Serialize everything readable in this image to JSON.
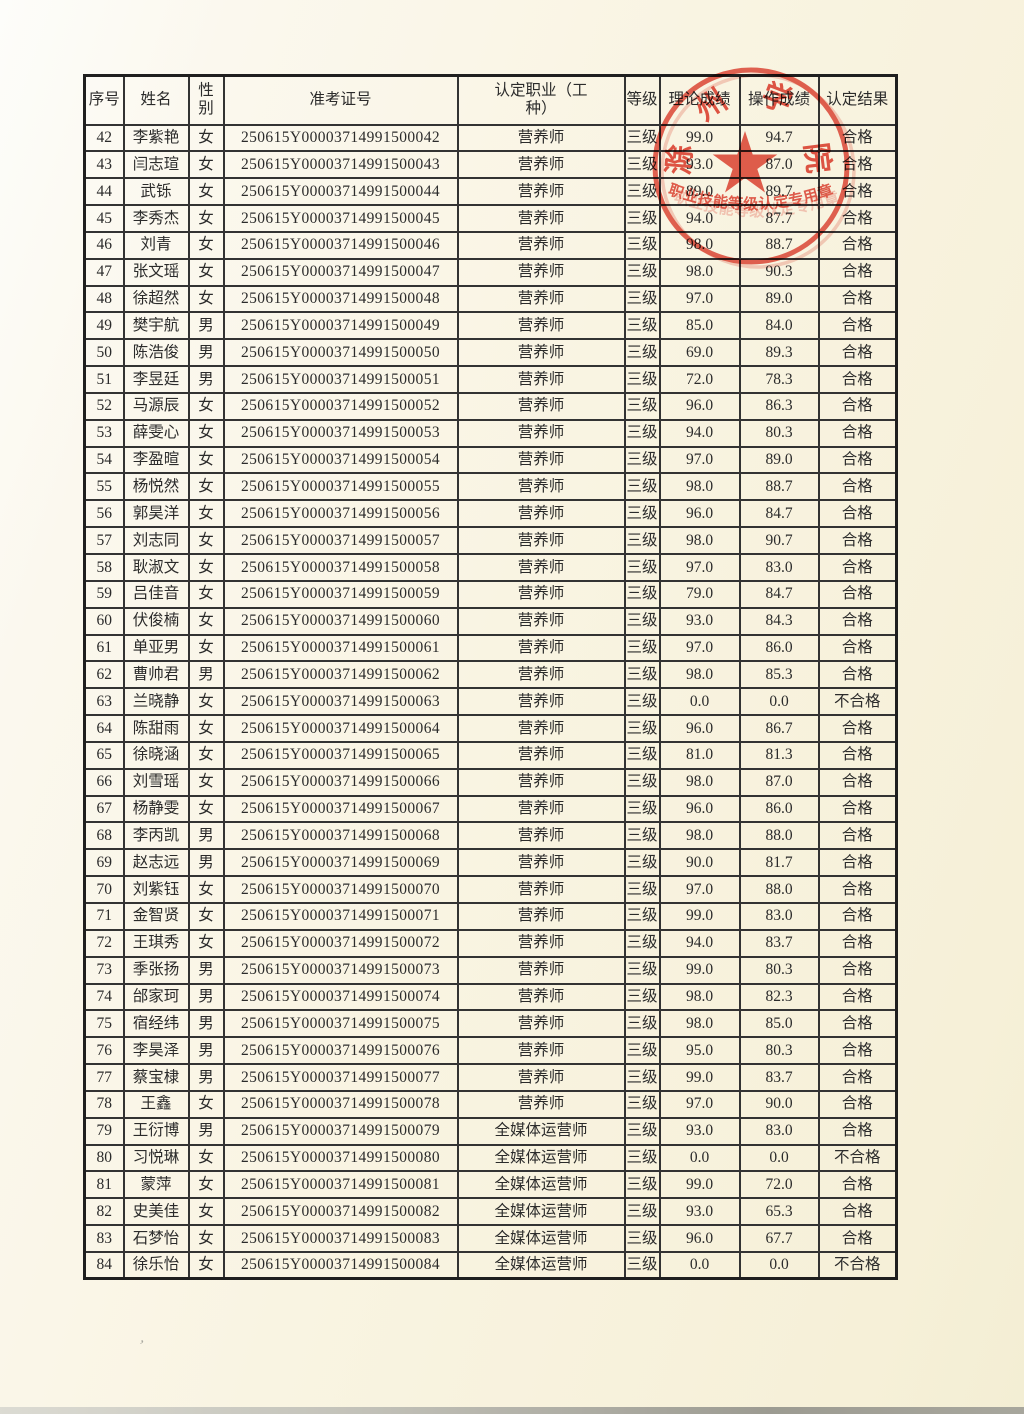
{
  "document": {
    "type": "scanned-certification-result-list",
    "page_background": "#f9f4e2",
    "ink_color": "#2b2b2b"
  },
  "table": {
    "headers": {
      "serial": "序号",
      "name": "姓名",
      "gender_l1": "性",
      "gender_l2": "别",
      "exam_id": "准考证号",
      "occupation_l1": "认定职业（工",
      "occupation_l2": "种）",
      "level": "等级",
      "theory_score": "理论成绩",
      "practical_score": "操作成绩",
      "result": "认定结果"
    },
    "rows": [
      [
        "42",
        "李紫艳",
        "女",
        "250615Y00003714991500042",
        "营养师",
        "三级",
        "99.0",
        "94.7",
        "合格"
      ],
      [
        "43",
        "闫志瑄",
        "女",
        "250615Y00003714991500043",
        "营养师",
        "三级",
        "93.0",
        "87.0",
        "合格"
      ],
      [
        "44",
        "武铄",
        "女",
        "250615Y00003714991500044",
        "营养师",
        "三级",
        "89.0",
        "89.7",
        "合格"
      ],
      [
        "45",
        "李秀杰",
        "女",
        "250615Y00003714991500045",
        "营养师",
        "三级",
        "94.0",
        "87.7",
        "合格"
      ],
      [
        "46",
        "刘青",
        "女",
        "250615Y00003714991500046",
        "营养师",
        "三级",
        "98.0",
        "88.7",
        "合格"
      ],
      [
        "47",
        "张文瑶",
        "女",
        "250615Y00003714991500047",
        "营养师",
        "三级",
        "98.0",
        "90.3",
        "合格"
      ],
      [
        "48",
        "徐超然",
        "女",
        "250615Y00003714991500048",
        "营养师",
        "三级",
        "97.0",
        "89.0",
        "合格"
      ],
      [
        "49",
        "樊宇航",
        "男",
        "250615Y00003714991500049",
        "营养师",
        "三级",
        "85.0",
        "84.0",
        "合格"
      ],
      [
        "50",
        "陈浩俊",
        "男",
        "250615Y00003714991500050",
        "营养师",
        "三级",
        "69.0",
        "89.3",
        "合格"
      ],
      [
        "51",
        "李昱廷",
        "男",
        "250615Y00003714991500051",
        "营养师",
        "三级",
        "72.0",
        "78.3",
        "合格"
      ],
      [
        "52",
        "马源辰",
        "女",
        "250615Y00003714991500052",
        "营养师",
        "三级",
        "96.0",
        "86.3",
        "合格"
      ],
      [
        "53",
        "薛雯心",
        "女",
        "250615Y00003714991500053",
        "营养师",
        "三级",
        "94.0",
        "80.3",
        "合格"
      ],
      [
        "54",
        "李盈暄",
        "女",
        "250615Y00003714991500054",
        "营养师",
        "三级",
        "97.0",
        "89.0",
        "合格"
      ],
      [
        "55",
        "杨悦然",
        "女",
        "250615Y00003714991500055",
        "营养师",
        "三级",
        "98.0",
        "88.7",
        "合格"
      ],
      [
        "56",
        "郭昊洋",
        "女",
        "250615Y00003714991500056",
        "营养师",
        "三级",
        "96.0",
        "84.7",
        "合格"
      ],
      [
        "57",
        "刘志同",
        "女",
        "250615Y00003714991500057",
        "营养师",
        "三级",
        "98.0",
        "90.7",
        "合格"
      ],
      [
        "58",
        "耿淑文",
        "女",
        "250615Y00003714991500058",
        "营养师",
        "三级",
        "97.0",
        "83.0",
        "合格"
      ],
      [
        "59",
        "吕佳音",
        "女",
        "250615Y00003714991500059",
        "营养师",
        "三级",
        "79.0",
        "84.7",
        "合格"
      ],
      [
        "60",
        "伏俊楠",
        "女",
        "250615Y00003714991500060",
        "营养师",
        "三级",
        "93.0",
        "84.3",
        "合格"
      ],
      [
        "61",
        "单亚男",
        "女",
        "250615Y00003714991500061",
        "营养师",
        "三级",
        "97.0",
        "86.0",
        "合格"
      ],
      [
        "62",
        "曹帅君",
        "男",
        "250615Y00003714991500062",
        "营养师",
        "三级",
        "98.0",
        "85.3",
        "合格"
      ],
      [
        "63",
        "兰晓静",
        "女",
        "250615Y00003714991500063",
        "营养师",
        "三级",
        "0.0",
        "0.0",
        "不合格"
      ],
      [
        "64",
        "陈甜雨",
        "女",
        "250615Y00003714991500064",
        "营养师",
        "三级",
        "96.0",
        "86.7",
        "合格"
      ],
      [
        "65",
        "徐晓涵",
        "女",
        "250615Y00003714991500065",
        "营养师",
        "三级",
        "81.0",
        "81.3",
        "合格"
      ],
      [
        "66",
        "刘雪瑶",
        "女",
        "250615Y00003714991500066",
        "营养师",
        "三级",
        "98.0",
        "87.0",
        "合格"
      ],
      [
        "67",
        "杨静雯",
        "女",
        "250615Y00003714991500067",
        "营养师",
        "三级",
        "96.0",
        "86.0",
        "合格"
      ],
      [
        "68",
        "李丙凯",
        "男",
        "250615Y00003714991500068",
        "营养师",
        "三级",
        "98.0",
        "88.0",
        "合格"
      ],
      [
        "69",
        "赵志远",
        "男",
        "250615Y00003714991500069",
        "营养师",
        "三级",
        "90.0",
        "81.7",
        "合格"
      ],
      [
        "70",
        "刘紫钰",
        "女",
        "250615Y00003714991500070",
        "营养师",
        "三级",
        "97.0",
        "88.0",
        "合格"
      ],
      [
        "71",
        "金智贤",
        "女",
        "250615Y00003714991500071",
        "营养师",
        "三级",
        "99.0",
        "83.0",
        "合格"
      ],
      [
        "72",
        "王琪秀",
        "女",
        "250615Y00003714991500072",
        "营养师",
        "三级",
        "94.0",
        "83.7",
        "合格"
      ],
      [
        "73",
        "季张扬",
        "男",
        "250615Y00003714991500073",
        "营养师",
        "三级",
        "99.0",
        "80.3",
        "合格"
      ],
      [
        "74",
        "邰家珂",
        "男",
        "250615Y00003714991500074",
        "营养师",
        "三级",
        "98.0",
        "82.3",
        "合格"
      ],
      [
        "75",
        "宿经纬",
        "男",
        "250615Y00003714991500075",
        "营养师",
        "三级",
        "98.0",
        "85.0",
        "合格"
      ],
      [
        "76",
        "李昊泽",
        "男",
        "250615Y00003714991500076",
        "营养师",
        "三级",
        "95.0",
        "80.3",
        "合格"
      ],
      [
        "77",
        "蔡宝棣",
        "男",
        "250615Y00003714991500077",
        "营养师",
        "三级",
        "99.0",
        "83.7",
        "合格"
      ],
      [
        "78",
        "王鑫",
        "女",
        "250615Y00003714991500078",
        "营养师",
        "三级",
        "97.0",
        "90.0",
        "合格"
      ],
      [
        "79",
        "王衍博",
        "男",
        "250615Y00003714991500079",
        "全媒体运营师",
        "三级",
        "93.0",
        "83.0",
        "合格"
      ],
      [
        "80",
        "习悦琳",
        "女",
        "250615Y00003714991500080",
        "全媒体运营师",
        "三级",
        "0.0",
        "0.0",
        "不合格"
      ],
      [
        "81",
        "蒙萍",
        "女",
        "250615Y00003714991500081",
        "全媒体运营师",
        "三级",
        "99.0",
        "72.0",
        "合格"
      ],
      [
        "82",
        "史美佳",
        "女",
        "250615Y00003714991500082",
        "全媒体运营师",
        "三级",
        "93.0",
        "65.3",
        "合格"
      ],
      [
        "83",
        "石梦怡",
        "女",
        "250615Y00003714991500083",
        "全媒体运营师",
        "三级",
        "96.0",
        "67.7",
        "合格"
      ],
      [
        "84",
        "徐乐怡",
        "女",
        "250615Y00003714991500084",
        "全媒体运营师",
        "三级",
        "0.0",
        "0.0",
        "不合格"
      ]
    ]
  },
  "seal": {
    "color": "#e04437",
    "arc_chars": [
      "滁",
      "州",
      "学",
      "院"
    ],
    "bottom_text": "职业技能等级认定专用章"
  },
  "artifacts": {
    "comma_mark": "’"
  }
}
